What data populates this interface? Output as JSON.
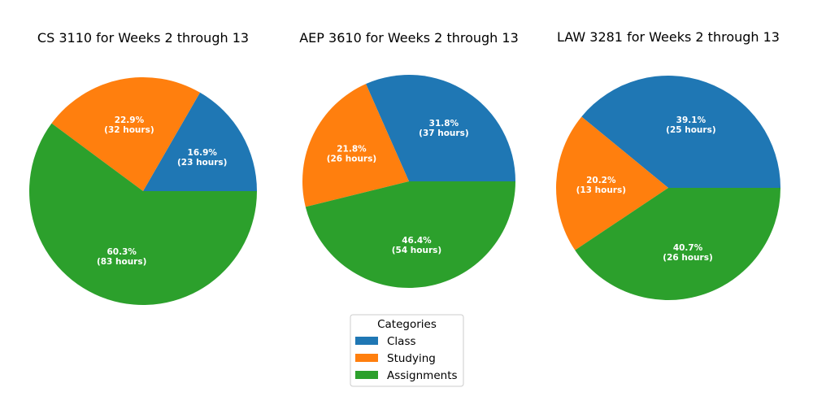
{
  "chart_data": [
    {
      "type": "pie",
      "title": "CS 3110 for Weeks 2 through 13",
      "labels": [
        "Class",
        "Studying",
        "Assignments"
      ],
      "percent_labels": [
        "16.9%",
        "22.9%",
        "60.3%"
      ],
      "hour_labels": [
        "(23 hours)",
        "(32 hours)",
        "(83 hours)"
      ],
      "values": [
        23,
        32,
        83
      ],
      "colors": [
        "#1f77b4",
        "#ff7f0e",
        "#2ca02c"
      ]
    },
    {
      "type": "pie",
      "title": "AEP 3610 for Weeks 2 through 13",
      "labels": [
        "Class",
        "Studying",
        "Assignments"
      ],
      "percent_labels": [
        "31.8%",
        "21.8%",
        "46.4%"
      ],
      "hour_labels": [
        "(37 hours)",
        "(26 hours)",
        "(54 hours)"
      ],
      "values": [
        37,
        26,
        54
      ],
      "colors": [
        "#1f77b4",
        "#ff7f0e",
        "#2ca02c"
      ]
    },
    {
      "type": "pie",
      "title": "LAW 3281 for Weeks 2 through 13",
      "labels": [
        "Class",
        "Studying",
        "Assignments"
      ],
      "percent_labels": [
        "39.1%",
        "20.2%",
        "40.7%"
      ],
      "hour_labels": [
        "(25 hours)",
        "(13 hours)",
        "(26 hours)"
      ],
      "values": [
        25,
        13,
        26
      ],
      "colors": [
        "#1f77b4",
        "#ff7f0e",
        "#2ca02c"
      ]
    }
  ],
  "legend": {
    "title": "Categories",
    "placement": "bottom-center",
    "items": [
      {
        "label": "Class",
        "color": "#1f77b4"
      },
      {
        "label": "Studying",
        "color": "#ff7f0e"
      },
      {
        "label": "Assignments",
        "color": "#2ca02c"
      }
    ]
  }
}
